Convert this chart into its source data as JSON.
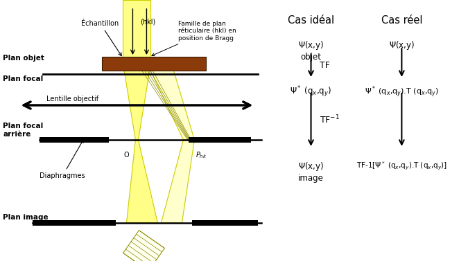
{
  "bg_color": "#ffffff",
  "beam_color": "#ffff88",
  "beam_edge_color": "#cccc00",
  "diff_beam_color": "#ffffcc",
  "sample_color": "#8B3A0A",
  "black_color": "#000000",
  "labels": {
    "plan_objet": "Plan objet",
    "plan_focal": "Plan focal",
    "lentille": "Lentille objectif",
    "plan_focal_arriere": "Plan focal\narrière",
    "diaphragmes": "Diaphragmes",
    "plan_image": "Plan image",
    "echantillon": "Échantillon",
    "hkl": "(hkl)",
    "famille": "Famille de plan\nréticulaire (hkl) en\nposition de Bragg",
    "O": "O",
    "Phk": "P"
  },
  "right_panel": {
    "col1_title": "Cas idéal",
    "col2_title": "Cas réel"
  }
}
